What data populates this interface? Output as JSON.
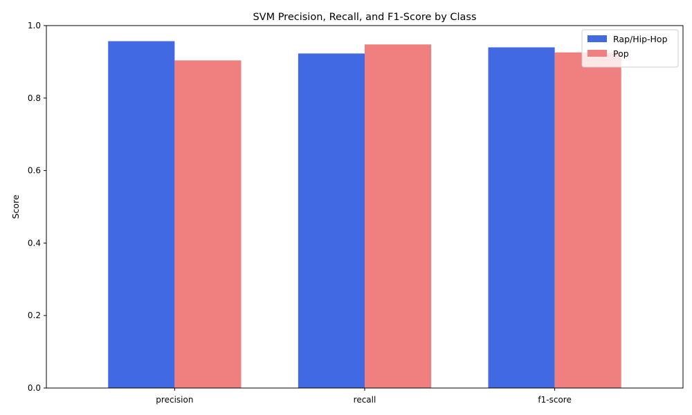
{
  "chart_data": {
    "type": "bar",
    "title": "SVM Precision, Recall, and F1-Score by Class",
    "xlabel": "",
    "ylabel": "Score",
    "categories": [
      "precision",
      "recall",
      "f1-score"
    ],
    "series": [
      {
        "name": "Rap/Hip-Hop",
        "color": "#4169e1",
        "values": [
          0.957,
          0.923,
          0.94
        ]
      },
      {
        "name": "Pop",
        "color": "#f08080",
        "values": [
          0.904,
          0.948,
          0.926
        ]
      }
    ],
    "ylim": [
      0,
      1.0
    ],
    "yticks": [
      "0.0",
      "0.2",
      "0.4",
      "0.6",
      "0.8",
      "1.0"
    ],
    "grid": false,
    "legend_position": "top-right"
  }
}
